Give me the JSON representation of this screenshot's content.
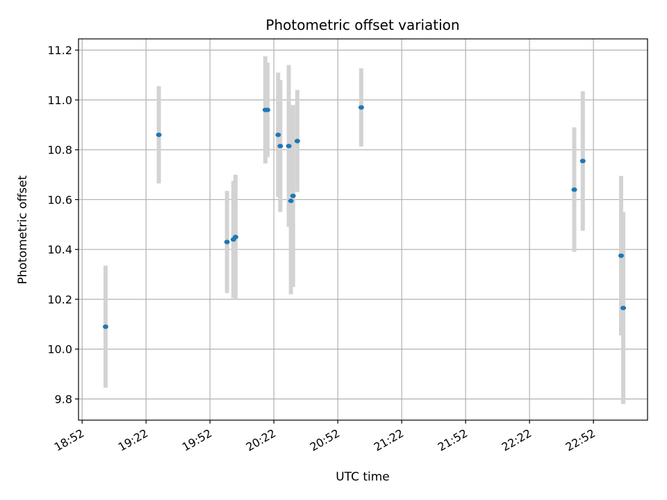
{
  "chart_data": {
    "type": "scatter",
    "title": "Photometric offset variation",
    "xlabel": "UTC time",
    "ylabel": "Photometric offset",
    "x_ticks": [
      "18:52",
      "19:22",
      "19:52",
      "20:22",
      "20:52",
      "21:22",
      "21:52",
      "22:22",
      "22:52"
    ],
    "x_tick_minutes": [
      0,
      30,
      60,
      90,
      120,
      150,
      180,
      210,
      240
    ],
    "x_range_minutes": [
      -1.7,
      265.4
    ],
    "y_ticks": [
      9.8,
      10.0,
      10.2,
      10.4,
      10.6,
      10.8,
      11.0,
      11.2
    ],
    "ylim": [
      9.715,
      11.245
    ],
    "grid": true,
    "colors": {
      "point": "#1f77b4",
      "errorbar": "#d3d3d3",
      "grid": "#b0b0b0"
    },
    "points": [
      {
        "t": "19:03",
        "y": 10.09,
        "yerr": 0.245
      },
      {
        "t": "19:28",
        "y": 10.86,
        "yerr": 0.195
      },
      {
        "t": "20:00",
        "y": 10.43,
        "yerr": 0.205
      },
      {
        "t": "20:03",
        "y": 10.44,
        "yerr": 0.235
      },
      {
        "t": "20:04",
        "y": 10.45,
        "yerr": 0.25
      },
      {
        "t": "20:18",
        "y": 10.96,
        "yerr": 0.215
      },
      {
        "t": "20:19",
        "y": 10.96,
        "yerr": 0.19
      },
      {
        "t": "20:24",
        "y": 10.86,
        "yerr": 0.25
      },
      {
        "t": "20:25",
        "y": 10.815,
        "yerr": 0.265
      },
      {
        "t": "20:29",
        "y": 10.815,
        "yerr": 0.325
      },
      {
        "t": "20:30",
        "y": 10.595,
        "yerr": 0.375
      },
      {
        "t": "20:31",
        "y": 10.615,
        "yerr": 0.365
      },
      {
        "t": "20:33",
        "y": 10.835,
        "yerr": 0.205
      },
      {
        "t": "21:03",
        "y": 10.97,
        "yerr": 0.157
      },
      {
        "t": "22:43",
        "y": 10.64,
        "yerr": 0.25
      },
      {
        "t": "22:47",
        "y": 10.755,
        "yerr": 0.28
      },
      {
        "t": "23:05",
        "y": 10.375,
        "yerr": 0.32
      },
      {
        "t": "23:06",
        "y": 10.165,
        "yerr": 0.385
      }
    ]
  }
}
